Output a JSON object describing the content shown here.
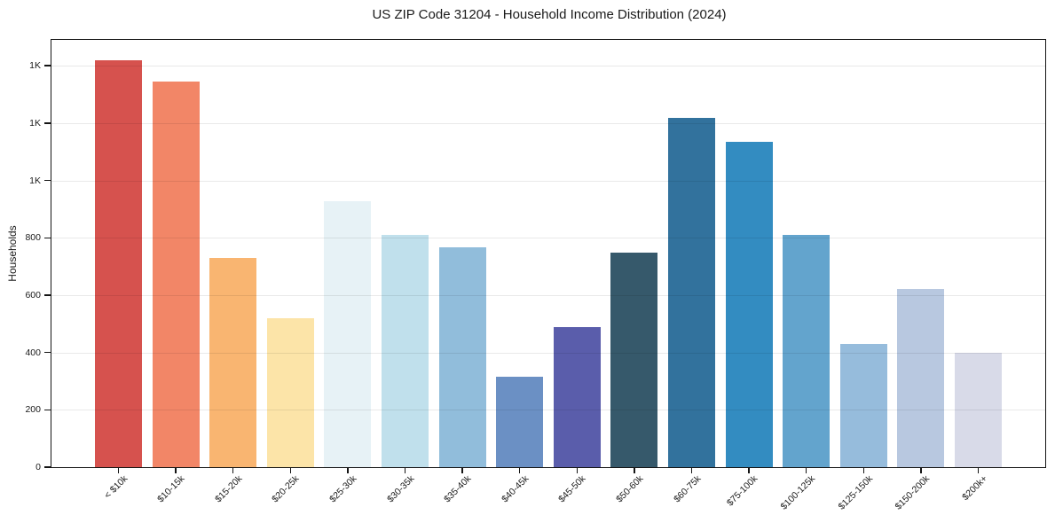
{
  "chart_data": {
    "type": "bar",
    "title": "US ZIP Code 31204 - Household Income Distribution (2024)",
    "xlabel": "",
    "ylabel": "Households",
    "categories": [
      "< $10k",
      "$10-15k",
      "$15-20k",
      "$20-25k",
      "$25-30k",
      "$30-35k",
      "$35-40k",
      "$40-45k",
      "$45-50k",
      "$50-60k",
      "$60-75k",
      "$75-100k",
      "$100-125k",
      "$125-150k",
      "$150-200k",
      "$200k+"
    ],
    "values": [
      1420,
      1345,
      730,
      518,
      928,
      810,
      768,
      314,
      490,
      749,
      1218,
      1135,
      810,
      429,
      622,
      400
    ],
    "bar_colors": [
      "#d6524e",
      "#f28667",
      "#f9b571",
      "#fce4a8",
      "#e7f2f6",
      "#c0e0ec",
      "#91bddb",
      "#6b90c4",
      "#5a5dab",
      "#36596b",
      "#32729d",
      "#338cc1",
      "#63a4cd",
      "#96bcdc",
      "#b8c8e0",
      "#d8dae8"
    ],
    "ylim": [
      0,
      1490
    ],
    "yticks": {
      "values": [
        0,
        200,
        400,
        600,
        800,
        1000,
        1200,
        1400
      ],
      "labels": [
        "0",
        "200",
        "400",
        "600",
        "800",
        "1K",
        "1K",
        "1K"
      ]
    },
    "grid": "horizontal",
    "legend": "none",
    "colors": {
      "background": "#ffffff",
      "grid": "#e8e8e8",
      "spine": "#141414",
      "text": "#1a1a1a"
    }
  }
}
